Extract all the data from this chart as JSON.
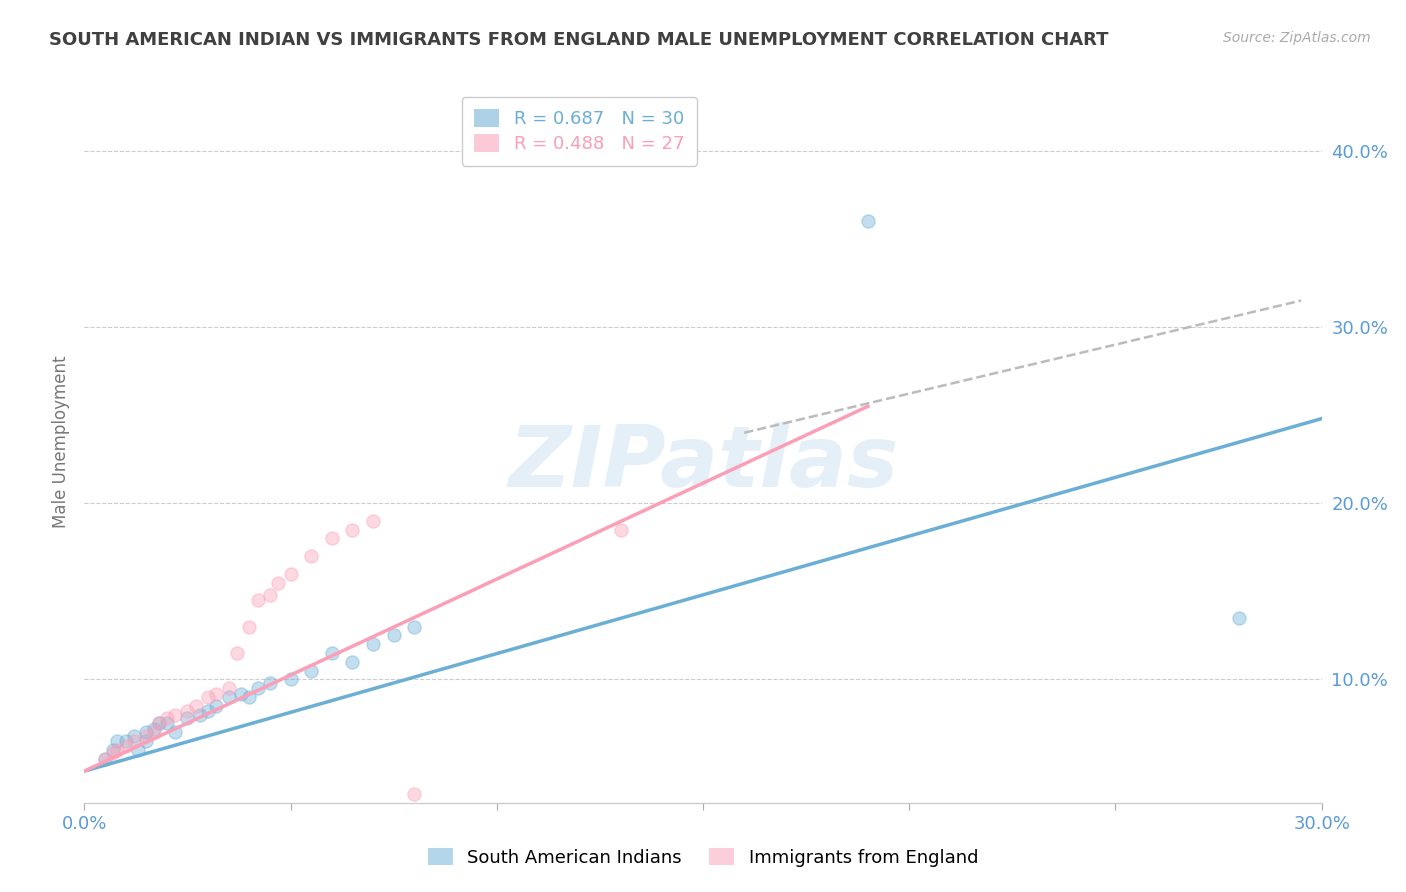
{
  "title": "SOUTH AMERICAN INDIAN VS IMMIGRANTS FROM ENGLAND MALE UNEMPLOYMENT CORRELATION CHART",
  "source": "Source: ZipAtlas.com",
  "ylabel": "Male Unemployment",
  "ylabel_right_ticks": [
    "10.0%",
    "20.0%",
    "30.0%",
    "40.0%"
  ],
  "ylabel_right_values": [
    0.1,
    0.2,
    0.3,
    0.4
  ],
  "xmin": 0.0,
  "xmax": 0.3,
  "ymin": 0.03,
  "ymax": 0.44,
  "legend_entries": [
    {
      "label": "R = 0.687   N = 30",
      "color": "#6baed6"
    },
    {
      "label": "R = 0.488   N = 27",
      "color": "#fa9fb5"
    }
  ],
  "legend_group1": "South American Indians",
  "legend_group2": "Immigrants from England",
  "blue_color": "#6baed6",
  "pink_color": "#fa9fb5",
  "blue_scatter": [
    [
      0.005,
      0.055
    ],
    [
      0.007,
      0.06
    ],
    [
      0.008,
      0.065
    ],
    [
      0.01,
      0.065
    ],
    [
      0.012,
      0.068
    ],
    [
      0.013,
      0.06
    ],
    [
      0.015,
      0.07
    ],
    [
      0.015,
      0.065
    ],
    [
      0.017,
      0.072
    ],
    [
      0.018,
      0.075
    ],
    [
      0.02,
      0.075
    ],
    [
      0.022,
      0.07
    ],
    [
      0.025,
      0.078
    ],
    [
      0.028,
      0.08
    ],
    [
      0.03,
      0.082
    ],
    [
      0.032,
      0.085
    ],
    [
      0.035,
      0.09
    ],
    [
      0.038,
      0.092
    ],
    [
      0.04,
      0.09
    ],
    [
      0.042,
      0.095
    ],
    [
      0.045,
      0.098
    ],
    [
      0.05,
      0.1
    ],
    [
      0.055,
      0.105
    ],
    [
      0.06,
      0.115
    ],
    [
      0.065,
      0.11
    ],
    [
      0.07,
      0.12
    ],
    [
      0.075,
      0.125
    ],
    [
      0.08,
      0.13
    ],
    [
      0.28,
      0.135
    ],
    [
      0.19,
      0.36
    ]
  ],
  "pink_scatter": [
    [
      0.005,
      0.055
    ],
    [
      0.007,
      0.058
    ],
    [
      0.008,
      0.06
    ],
    [
      0.01,
      0.062
    ],
    [
      0.012,
      0.065
    ],
    [
      0.015,
      0.068
    ],
    [
      0.017,
      0.07
    ],
    [
      0.018,
      0.075
    ],
    [
      0.02,
      0.078
    ],
    [
      0.022,
      0.08
    ],
    [
      0.025,
      0.082
    ],
    [
      0.027,
      0.085
    ],
    [
      0.03,
      0.09
    ],
    [
      0.032,
      0.092
    ],
    [
      0.035,
      0.095
    ],
    [
      0.037,
      0.115
    ],
    [
      0.04,
      0.13
    ],
    [
      0.042,
      0.145
    ],
    [
      0.045,
      0.148
    ],
    [
      0.047,
      0.155
    ],
    [
      0.05,
      0.16
    ],
    [
      0.055,
      0.17
    ],
    [
      0.06,
      0.18
    ],
    [
      0.065,
      0.185
    ],
    [
      0.07,
      0.19
    ],
    [
      0.13,
      0.185
    ],
    [
      0.08,
      0.035
    ]
  ],
  "blue_line_x": [
    0.0,
    0.3
  ],
  "blue_line_y": [
    0.048,
    0.248
  ],
  "pink_line_x": [
    0.0,
    0.19
  ],
  "pink_line_y": [
    0.048,
    0.255
  ],
  "dashed_line_x": [
    0.16,
    0.295
  ],
  "dashed_line_y": [
    0.24,
    0.315
  ],
  "watermark": "ZIPatlas",
  "grid_color": "#cccccc",
  "background_color": "#ffffff",
  "title_color": "#404040",
  "axis_label_color": "#5b9bd5",
  "scatter_size": 90,
  "scatter_alpha": 0.4,
  "scatter_linewidth": 1.0
}
